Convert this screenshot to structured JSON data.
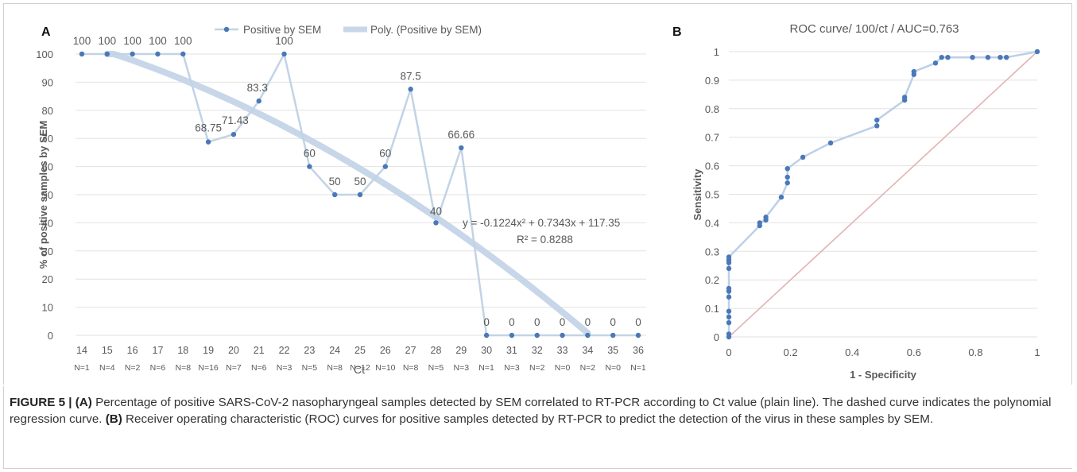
{
  "chart_data": [
    {
      "panel": "A",
      "type": "line",
      "title": "",
      "xlabel": "Ct",
      "ylabel": "% of positive samples by SEM",
      "ylim": [
        0,
        100
      ],
      "ytick_step": 10,
      "grid": "horizontal",
      "legend_position": "top",
      "legend": [
        "Positive by SEM",
        "Poly. (Positive by SEM)"
      ],
      "x": [
        14,
        15,
        16,
        17,
        18,
        19,
        20,
        21,
        22,
        23,
        24,
        25,
        26,
        27,
        28,
        29,
        30,
        31,
        32,
        33,
        34,
        35,
        36
      ],
      "n_labels": [
        "N=1",
        "N=4",
        "N=2",
        "N=6",
        "N=8",
        "N=16",
        "N=7",
        "N=6",
        "N=3",
        "N=5",
        "N=8",
        "N=12",
        "N=10",
        "N=8",
        "N=5",
        "N=3",
        "N=1",
        "N=3",
        "N=2",
        "N=0",
        "N=2",
        "N=0",
        "N=1"
      ],
      "series": [
        {
          "name": "Positive by SEM",
          "values": [
            100,
            100,
            100,
            100,
            100,
            68.75,
            71.43,
            83.3,
            100,
            60,
            50,
            50,
            60,
            87.5,
            40,
            66.66,
            0,
            0,
            0,
            0,
            0,
            0,
            0
          ],
          "data_labels": [
            "100",
            "100",
            "100",
            "100",
            "100",
            "68.75",
            "71.43",
            "83.3",
            "100",
            "60",
            "50",
            "50",
            "60",
            "87.5",
            "40",
            "66.66",
            "0",
            "0",
            "0",
            "0",
            "0",
            "0",
            "0"
          ]
        }
      ],
      "trendline": {
        "name": "Poly. (Positive by SEM)",
        "a": -0.1224,
        "b": 0.7343,
        "c": 117.35,
        "x_range": [
          15,
          34
        ]
      },
      "equation": "y = -0.1224x² + 0.7343x + 117.35",
      "r_squared": "R² = 0.8288",
      "panel_letter": "A"
    },
    {
      "panel": "B",
      "type": "line",
      "title": "ROC  curve/  100/ct / AUC=0.763",
      "xlabel": "1 - Specificity",
      "ylabel": "Sensitivity",
      "xlim": [
        0,
        1
      ],
      "ylim": [
        0,
        1
      ],
      "xticks": [
        "0",
        "0.2",
        "0.4",
        "0.6",
        "0.8",
        "1"
      ],
      "yticks": [
        "0",
        "0.1",
        "0.2",
        "0.3",
        "0.4",
        "0.5",
        "0.6",
        "0.7",
        "0.8",
        "0.9",
        "1"
      ],
      "grid": "horizontal",
      "series": [
        {
          "name": "",
          "points": [
            [
              0,
              0
            ],
            [
              0,
              0.01
            ],
            [
              0,
              0.05
            ],
            [
              0,
              0.07
            ],
            [
              0,
              0.09
            ],
            [
              0,
              0.14
            ],
            [
              0,
              0.16
            ],
            [
              0,
              0.17
            ],
            [
              0,
              0.24
            ],
            [
              0,
              0.26
            ],
            [
              0,
              0.27
            ],
            [
              0,
              0.28
            ],
            [
              0.1,
              0.39
            ],
            [
              0.1,
              0.4
            ],
            [
              0.12,
              0.41
            ],
            [
              0.12,
              0.42
            ],
            [
              0.17,
              0.49
            ],
            [
              0.19,
              0.54
            ],
            [
              0.19,
              0.56
            ],
            [
              0.19,
              0.59
            ],
            [
              0.24,
              0.63
            ],
            [
              0.33,
              0.68
            ],
            [
              0.48,
              0.74
            ],
            [
              0.48,
              0.76
            ],
            [
              0.57,
              0.83
            ],
            [
              0.57,
              0.84
            ],
            [
              0.6,
              0.92
            ],
            [
              0.6,
              0.93
            ],
            [
              0.67,
              0.96
            ],
            [
              0.69,
              0.98
            ],
            [
              0.71,
              0.98
            ],
            [
              0.79,
              0.98
            ],
            [
              0.84,
              0.98
            ],
            [
              0.88,
              0.98
            ],
            [
              0.9,
              0.98
            ],
            [
              1,
              1
            ]
          ]
        }
      ],
      "reference_line": [
        [
          0,
          0
        ],
        [
          1,
          1
        ]
      ],
      "colors": {
        "roc_line": "#bcd0e8",
        "roc_marker": "#4a78b8",
        "reference": "#e3b3b3"
      },
      "panel_letter": "B"
    }
  ],
  "colors": {
    "series_marker": "#4a78b8",
    "series_line": "#c2d3e6",
    "trendline": "#c7d6e8",
    "grid": "#e2e2e2",
    "tick_text": "#595959"
  },
  "caption": {
    "label": "FIGURE 5 |",
    "a_tag": "(A)",
    "a_text": " Percentage of positive SARS-CoV-2 nasopharyngeal samples detected by SEM correlated to RT-PCR according to Ct value (plain line). The dashed curve indicates the polynomial regression curve. ",
    "b_tag": "(B)",
    "b_text": " Receiver operating characteristic (ROC) curves for positive samples detected by RT-PCR to predict the detection of the virus in these samples by SEM."
  }
}
